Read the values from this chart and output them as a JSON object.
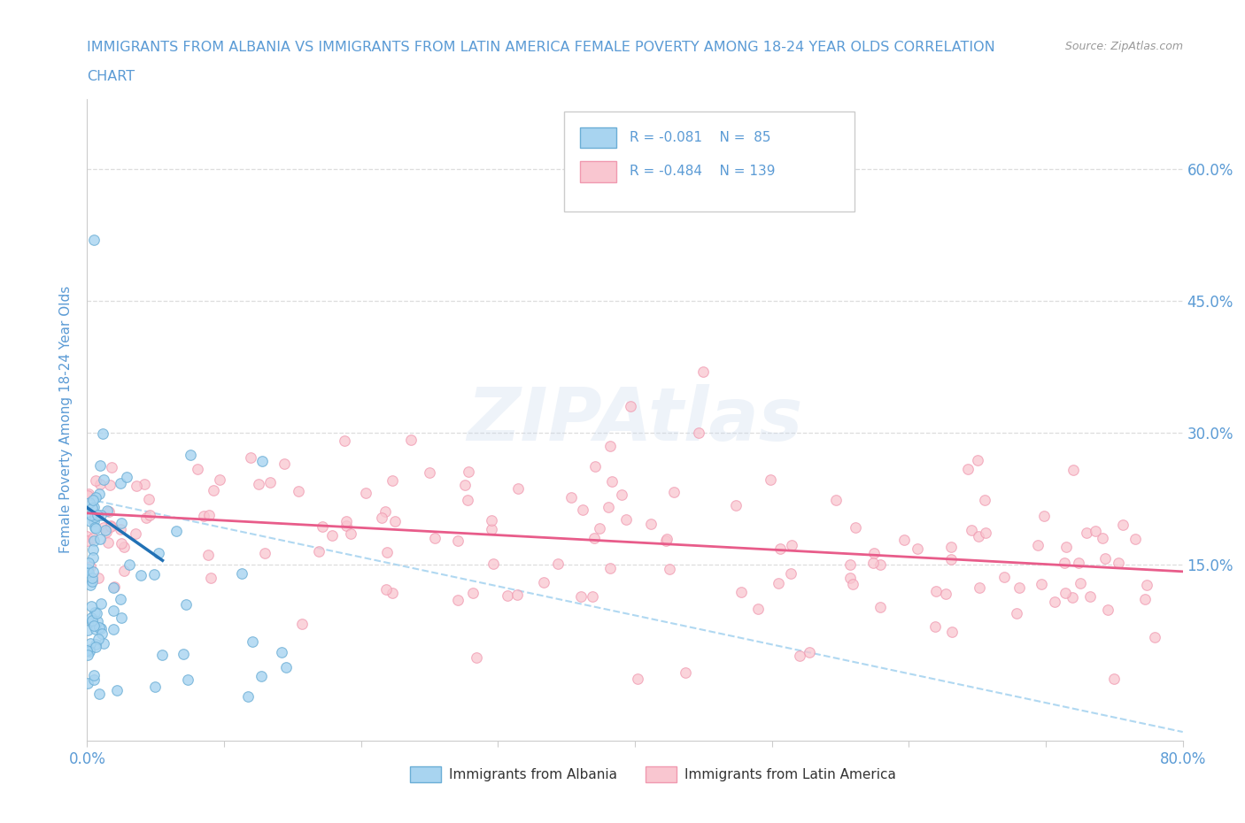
{
  "title_line1": "IMMIGRANTS FROM ALBANIA VS IMMIGRANTS FROM LATIN AMERICA FEMALE POVERTY AMONG 18-24 YEAR OLDS CORRELATION",
  "title_line2": "CHART",
  "source_text": "Source: ZipAtlas.com",
  "ylabel": "Female Poverty Among 18-24 Year Olds",
  "xlim": [
    0.0,
    0.8
  ],
  "ylim": [
    -0.05,
    0.68
  ],
  "xtick_vals": [
    0.0,
    0.1,
    0.2,
    0.3,
    0.4,
    0.5,
    0.6,
    0.7,
    0.8
  ],
  "xtick_show": [
    "0.0%",
    "",
    "",
    "",
    "",
    "",
    "",
    "",
    "80.0%"
  ],
  "ytick_vals": [
    0.15,
    0.3,
    0.45,
    0.6
  ],
  "right_ytick_labels": [
    "15.0%",
    "30.0%",
    "45.0%",
    "60.0%"
  ],
  "albania_color": "#a8d4f0",
  "albania_edge": "#6baed6",
  "latin_color": "#f9c6d0",
  "latin_edge": "#f099b0",
  "albania_trend_color": "#2171b5",
  "latin_trend_color": "#e85c8a",
  "dashed_color": "#a8d4f0",
  "legend_R1": "R = -0.081",
  "legend_N1": "N =  85",
  "legend_R2": "R = -0.484",
  "legend_N2": "N = 139",
  "legend_label1": "Immigrants from Albania",
  "legend_label2": "Immigrants from Latin America",
  "watermark": "ZIPAtlas",
  "background_color": "#ffffff",
  "grid_color": "#dddddd",
  "title_color": "#5b9bd5",
  "axis_label_color": "#5b9bd5",
  "tick_label_color": "#5b9bd5",
  "legend_text_color": "#5b9bd5",
  "seed": 7
}
